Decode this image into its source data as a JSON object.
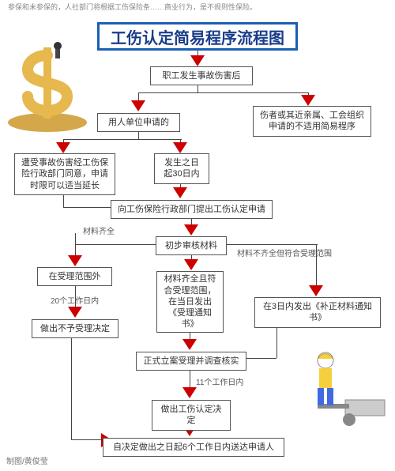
{
  "header_text": "参保和未参保的，人社部门将根据工伤保险条……商业行为，是不规则性保险。",
  "title": "工伤认定简易程序流程图",
  "title_border": "#1a5fb4",
  "accent": "#cc0000",
  "node_border": "#555555",
  "line_color": "#444444",
  "nodes": {
    "n1": "职工发生事故伤害后",
    "n2": "用人单位申请的",
    "n3": "伤者或其近亲属、工会组织申请的不适用简易程序",
    "n4": "遭受事故伤害经工伤保险行政部门同意，申请时限可以适当延长",
    "n5": "发生之日起30日内",
    "n6": "向工伤保险行政部门提出工伤认定申请",
    "n7": "初步审核材料",
    "n8": "在受理范围外",
    "n9": "材料齐全且符合受理范围，在当日发出《受理通知书》",
    "n10": "在3日内发出《补正材料通知书》",
    "n11": "做出不予受理决定",
    "n12": "正式立案受理并调查核实",
    "n13": "做出工伤认定决定",
    "n14": "自决定做出之日起6个工作日内送达申请人"
  },
  "labels": {
    "l1": "材料齐全",
    "l2": "材料不齐全但符合受理范围",
    "l3": "20个工作日内",
    "l4": "11个工作日内"
  },
  "credit": "制图/黄俊莹"
}
